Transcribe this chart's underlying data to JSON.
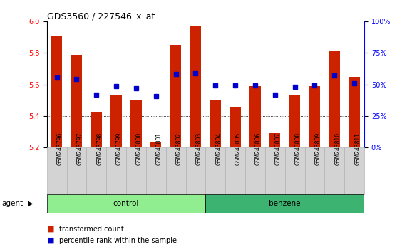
{
  "title": "GDS3560 / 227546_x_at",
  "samples": [
    "GSM243796",
    "GSM243797",
    "GSM243798",
    "GSM243799",
    "GSM243800",
    "GSM243801",
    "GSM243802",
    "GSM243803",
    "GSM243804",
    "GSM243805",
    "GSM243806",
    "GSM243807",
    "GSM243808",
    "GSM243809",
    "GSM243810",
    "GSM243811"
  ],
  "red_values": [
    5.91,
    5.79,
    5.42,
    5.53,
    5.5,
    5.23,
    5.85,
    5.97,
    5.5,
    5.46,
    5.59,
    5.29,
    5.53,
    5.59,
    5.81,
    5.65
  ],
  "blue_values": [
    5.645,
    5.635,
    5.535,
    5.59,
    5.575,
    5.525,
    5.665,
    5.67,
    5.595,
    5.595,
    5.595,
    5.535,
    5.585,
    5.595,
    5.655,
    5.605
  ],
  "ymin": 5.2,
  "ymax": 6.0,
  "yticks_left": [
    5.2,
    5.4,
    5.6,
    5.8,
    6.0
  ],
  "yticks_right": [
    0,
    25,
    50,
    75,
    100
  ],
  "ytick_labels_right": [
    "0%",
    "25%",
    "50%",
    "75%",
    "100%"
  ],
  "groups": [
    {
      "label": "control",
      "start": 0,
      "end": 8,
      "color": "#90EE90"
    },
    {
      "label": "benzene",
      "start": 8,
      "end": 16,
      "color": "#3CB371"
    }
  ],
  "bar_color": "#CC2200",
  "marker_color": "#0000CC",
  "baseline": 5.2,
  "legend_red": "transformed count",
  "legend_blue": "percentile rank within the sample",
  "agent_label": "agent",
  "sample_box_color": "#D3D3D3",
  "sample_box_edge": "#AAAAAA"
}
